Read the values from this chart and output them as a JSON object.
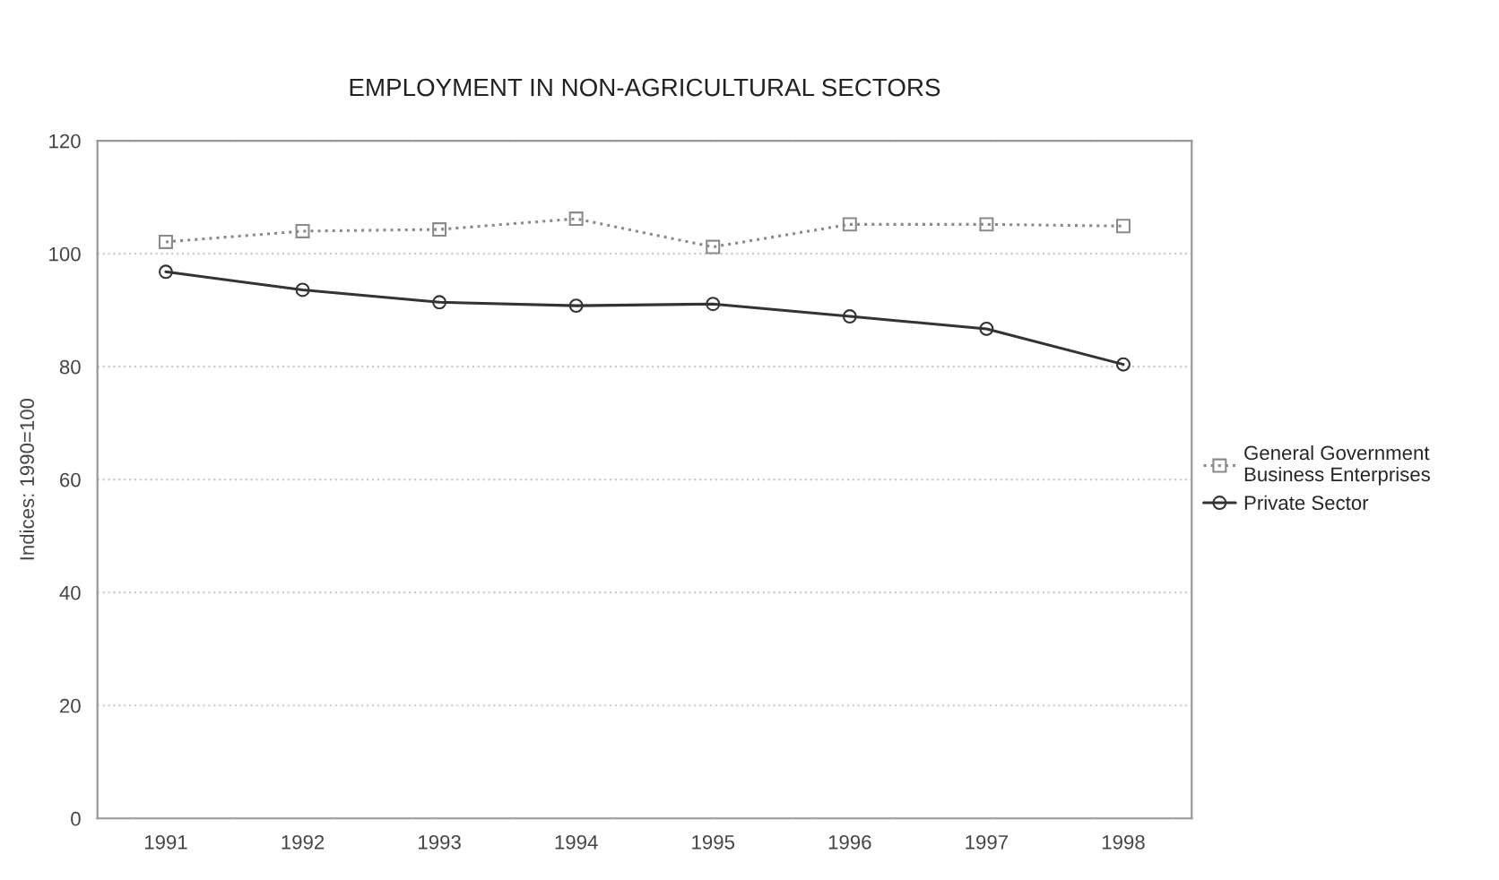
{
  "chart_data": {
    "type": "line",
    "title": "EMPLOYMENT IN NON-AGRICULTURAL SECTORS",
    "ylabel": "Indices: 1990=100",
    "categories": [
      "1991",
      "1992",
      "1993",
      "1994",
      "1995",
      "1996",
      "1997",
      "1998"
    ],
    "series": [
      {
        "name": "General Government\nBusiness Enterprises",
        "color": "#8a8a8a",
        "marker": "square",
        "line_style": "dotted",
        "values": [
          102.1,
          104,
          104.3,
          106.2,
          101.2,
          105.2,
          105.2,
          104.9
        ]
      },
      {
        "name": "Private Sector",
        "color": "#333333",
        "marker": "circle",
        "line_style": "solid",
        "values": [
          96.8,
          93.6,
          91.4,
          90.8,
          91.1,
          88.9,
          86.7,
          80.4
        ]
      }
    ],
    "ylim": [
      0,
      120
    ],
    "yticks": [
      0,
      20,
      40,
      60,
      80,
      100,
      120
    ],
    "grid": "y",
    "legend": "right"
  }
}
